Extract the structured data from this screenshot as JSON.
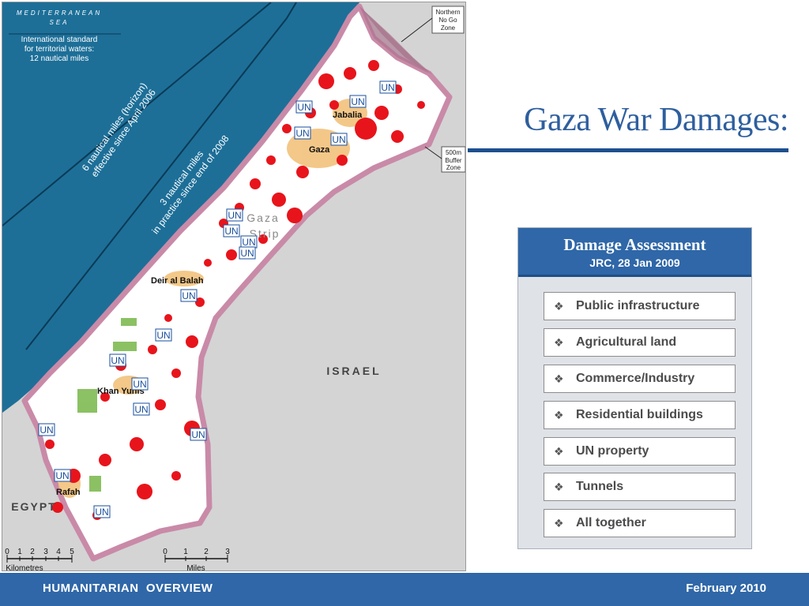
{
  "slide": {
    "title": "Gaza War Damages:"
  },
  "panel": {
    "title": "Damage Assessment",
    "subtitle": "JRC, 28 Jan 2009",
    "items": [
      {
        "icon": "diamond-bullet-icon",
        "label": "Public infrastructure"
      },
      {
        "icon": "diamond-bullet-icon",
        "label": "Agricultural land"
      },
      {
        "icon": "diamond-bullet-icon",
        "label": "Commerce/Industry"
      },
      {
        "icon": "diamond-bullet-icon",
        "label": "Residential buildings"
      },
      {
        "icon": "diamond-bullet-icon",
        "label": "UN property"
      },
      {
        "icon": "diamond-bullet-icon",
        "label": "Tunnels"
      },
      {
        "icon": "diamond-bullet-icon",
        "label": "All together"
      }
    ]
  },
  "map": {
    "sea_label_line1": "MEDITERRANEAN",
    "sea_label_line2": "SEA",
    "territorial_line1": "International standard",
    "territorial_line2": "for territorial waters:",
    "territorial_line3": "12 nautical miles",
    "six_nm_line1": "6 nautical miles (horizon)",
    "six_nm_line2": "effective since April 2006",
    "three_nm_line1": "3 nautical miles",
    "three_nm_line2": "in practice since end of 2008",
    "northern_zone_line1": "Northern",
    "northern_zone_line2": "No Go",
    "northern_zone_line3": "Zone",
    "buffer_line1": "500m",
    "buffer_line2": "Buffer",
    "buffer_line3": "Zone",
    "country_israel": "ISRAEL",
    "country_egypt": "EGYPT",
    "strip_label_1": "Gaza",
    "strip_label_2": "Strip",
    "un_marker": "UN",
    "cities": [
      {
        "name": "Jabalia"
      },
      {
        "name": "Gaza"
      },
      {
        "name": "Deir al Balah"
      },
      {
        "name": "Khan Yunis"
      },
      {
        "name": "Rafah"
      }
    ],
    "scale_km": {
      "ticks": [
        "0",
        "1",
        "2",
        "3",
        "4",
        "5"
      ],
      "unit": "Kilometres"
    },
    "scale_mi": {
      "ticks": [
        "0",
        "1",
        "2",
        "3"
      ],
      "unit": "Miles"
    },
    "colors": {
      "sea": "#1d6f98",
      "land": "#ffffff",
      "outside": "#d4d4d4",
      "damage": "#e8141b",
      "agriculture": "#6fb23d",
      "urban": "#f2c27c",
      "border": "#c98aa8"
    }
  },
  "footer": {
    "left": "HUMANITARIAN  OVERVIEW",
    "right": "February 2010"
  }
}
